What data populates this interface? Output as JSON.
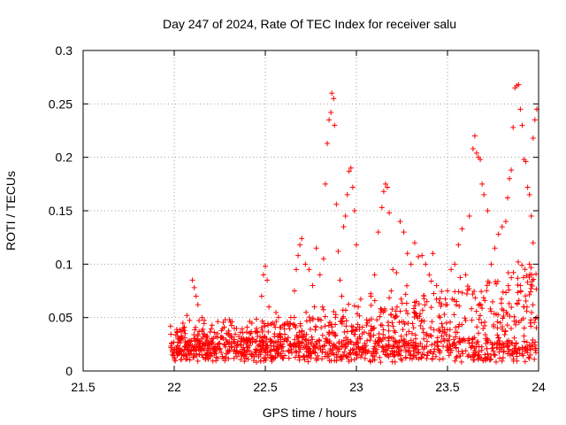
{
  "chart_data": {
    "type": "scatter",
    "title": "Day 247 of 2024, Rate Of TEC Index for receiver salu",
    "xlabel": "GPS time / hours",
    "ylabel": "ROTI / TECUs",
    "xlim": [
      21.5,
      24
    ],
    "ylim": [
      0,
      0.3
    ],
    "x_ticks": [
      "21.5",
      "22",
      "22.5",
      "23",
      "23.5",
      "24"
    ],
    "y_ticks": [
      "0",
      "0.05",
      "0.1",
      "0.15",
      "0.2",
      "0.25",
      "0.3"
    ],
    "grid": true,
    "marker": "plus",
    "color": "#ff0000",
    "series": [
      {
        "name": "ROTI",
        "points": [
          [
            21.98,
            0.042
          ],
          [
            22.0,
            0.02
          ],
          [
            22.02,
            0.03
          ],
          [
            22.04,
            0.018
          ],
          [
            22.06,
            0.035
          ],
          [
            22.08,
            0.025
          ],
          [
            22.1,
            0.085
          ],
          [
            22.11,
            0.078
          ],
          [
            22.12,
            0.07
          ],
          [
            22.13,
            0.062
          ],
          [
            22.07,
            0.052
          ],
          [
            22.05,
            0.04
          ],
          [
            22.12,
            0.022
          ],
          [
            22.15,
            0.03
          ],
          [
            22.18,
            0.015
          ],
          [
            22.2,
            0.028
          ],
          [
            22.22,
            0.036
          ],
          [
            22.25,
            0.02
          ],
          [
            22.28,
            0.048
          ],
          [
            22.3,
            0.025
          ],
          [
            22.33,
            0.04
          ],
          [
            22.36,
            0.018
          ],
          [
            22.38,
            0.03
          ],
          [
            22.4,
            0.022
          ],
          [
            22.42,
            0.035
          ],
          [
            22.45,
            0.015
          ],
          [
            22.47,
            0.028
          ],
          [
            22.48,
            0.07
          ],
          [
            22.49,
            0.09
          ],
          [
            22.5,
            0.098
          ],
          [
            22.51,
            0.085
          ],
          [
            22.52,
            0.06
          ],
          [
            22.54,
            0.045
          ],
          [
            22.56,
            0.02
          ],
          [
            22.58,
            0.035
          ],
          [
            22.6,
            0.012
          ],
          [
            22.62,
            0.028
          ],
          [
            22.64,
            0.05
          ],
          [
            22.66,
            0.075
          ],
          [
            22.67,
            0.095
          ],
          [
            22.68,
            0.108
          ],
          [
            22.69,
            0.118
          ],
          [
            22.7,
            0.124
          ],
          [
            22.72,
            0.1
          ],
          [
            22.74,
            0.095
          ],
          [
            22.76,
            0.08
          ],
          [
            22.77,
            0.06
          ],
          [
            22.78,
            0.115
          ],
          [
            22.8,
            0.09
          ],
          [
            22.82,
            0.105
          ],
          [
            22.83,
            0.175
          ],
          [
            22.84,
            0.213
          ],
          [
            22.85,
            0.235
          ],
          [
            22.86,
            0.242
          ],
          [
            22.865,
            0.26
          ],
          [
            22.875,
            0.255
          ],
          [
            22.88,
            0.23
          ],
          [
            22.89,
            0.156
          ],
          [
            22.9,
            0.112
          ],
          [
            22.91,
            0.085
          ],
          [
            22.92,
            0.07
          ],
          [
            22.93,
            0.135
          ],
          [
            22.94,
            0.145
          ],
          [
            22.95,
            0.165
          ],
          [
            22.96,
            0.187
          ],
          [
            22.97,
            0.19
          ],
          [
            22.98,
            0.172
          ],
          [
            22.99,
            0.15
          ],
          [
            23.0,
            0.118
          ],
          [
            23.01,
            0.06
          ],
          [
            23.02,
            0.03
          ],
          [
            23.04,
            0.02
          ],
          [
            23.06,
            0.045
          ],
          [
            23.08,
            0.07
          ],
          [
            23.1,
            0.09
          ],
          [
            23.12,
            0.13
          ],
          [
            23.14,
            0.153
          ],
          [
            23.15,
            0.168
          ],
          [
            23.16,
            0.175
          ],
          [
            23.17,
            0.172
          ],
          [
            23.18,
            0.148
          ],
          [
            23.2,
            0.095
          ],
          [
            23.22,
            0.092
          ],
          [
            23.24,
            0.14
          ],
          [
            23.26,
            0.13
          ],
          [
            23.28,
            0.11
          ],
          [
            23.3,
            0.1
          ],
          [
            23.32,
            0.12
          ],
          [
            23.34,
            0.107
          ],
          [
            23.36,
            0.108
          ],
          [
            23.38,
            0.1
          ],
          [
            23.4,
            0.09
          ],
          [
            23.42,
            0.11
          ],
          [
            23.44,
            0.08
          ],
          [
            23.46,
            0.05
          ],
          [
            23.48,
            0.03
          ],
          [
            23.5,
            0.075
          ],
          [
            23.52,
            0.095
          ],
          [
            23.54,
            0.1
          ],
          [
            23.56,
            0.118
          ],
          [
            23.58,
            0.133
          ],
          [
            23.6,
            0.09
          ],
          [
            23.62,
            0.145
          ],
          [
            23.64,
            0.208
          ],
          [
            23.65,
            0.22
          ],
          [
            23.66,
            0.204
          ],
          [
            23.67,
            0.2
          ],
          [
            23.68,
            0.198
          ],
          [
            23.69,
            0.175
          ],
          [
            23.7,
            0.165
          ],
          [
            23.72,
            0.15
          ],
          [
            23.74,
            0.1
          ],
          [
            23.76,
            0.115
          ],
          [
            23.78,
            0.128
          ],
          [
            23.8,
            0.135
          ],
          [
            23.82,
            0.14
          ],
          [
            23.83,
            0.162
          ],
          [
            23.84,
            0.18
          ],
          [
            23.85,
            0.188
          ],
          [
            23.86,
            0.228
          ],
          [
            23.87,
            0.265
          ],
          [
            23.88,
            0.267
          ],
          [
            23.89,
            0.268
          ],
          [
            23.9,
            0.245
          ],
          [
            23.91,
            0.23
          ],
          [
            23.92,
            0.198
          ],
          [
            23.93,
            0.196
          ],
          [
            23.94,
            0.172
          ],
          [
            23.95,
            0.165
          ],
          [
            23.96,
            0.145
          ],
          [
            23.97,
            0.218
          ],
          [
            23.98,
            0.235
          ],
          [
            23.99,
            0.245
          ],
          [
            23.9,
            0.08
          ],
          [
            23.92,
            0.06
          ],
          [
            23.95,
            0.1
          ],
          [
            23.97,
            0.12
          ],
          [
            23.99,
            0.05
          ]
        ]
      }
    ]
  }
}
